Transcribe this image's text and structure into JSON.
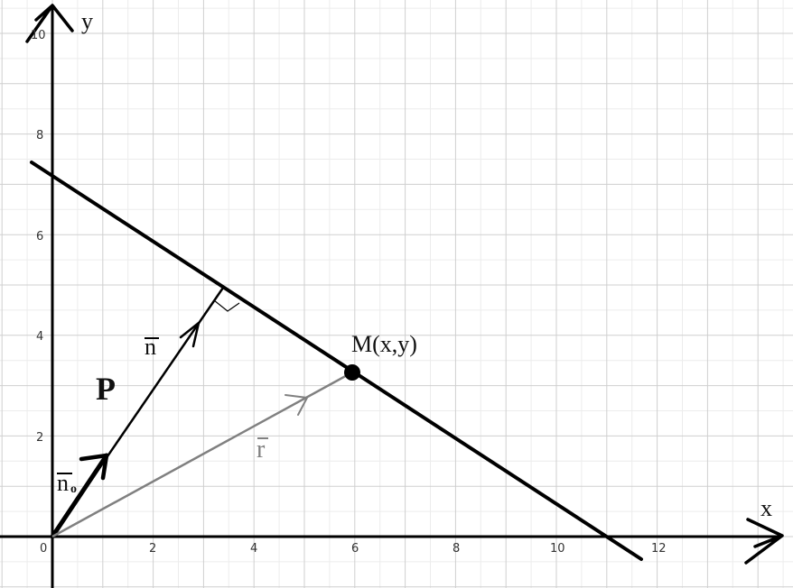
{
  "diagram": {
    "axes": {
      "x_label": "x",
      "y_label": "y",
      "x_ticks": [
        "0",
        "2",
        "4",
        "6",
        "8",
        "10",
        "12"
      ],
      "y_ticks": [
        "2",
        "4",
        "6",
        "8",
        "10"
      ]
    },
    "labels": {
      "point": "M(x,y)",
      "plane": "P",
      "normal": "n",
      "unit_normal": "n",
      "unit_normal_sub": "o",
      "radius": "r"
    },
    "colors": {
      "grid_major": "#cfcfcf",
      "grid_minor": "#ececec",
      "ink": "#000000",
      "radius_vector": "#808080"
    }
  }
}
